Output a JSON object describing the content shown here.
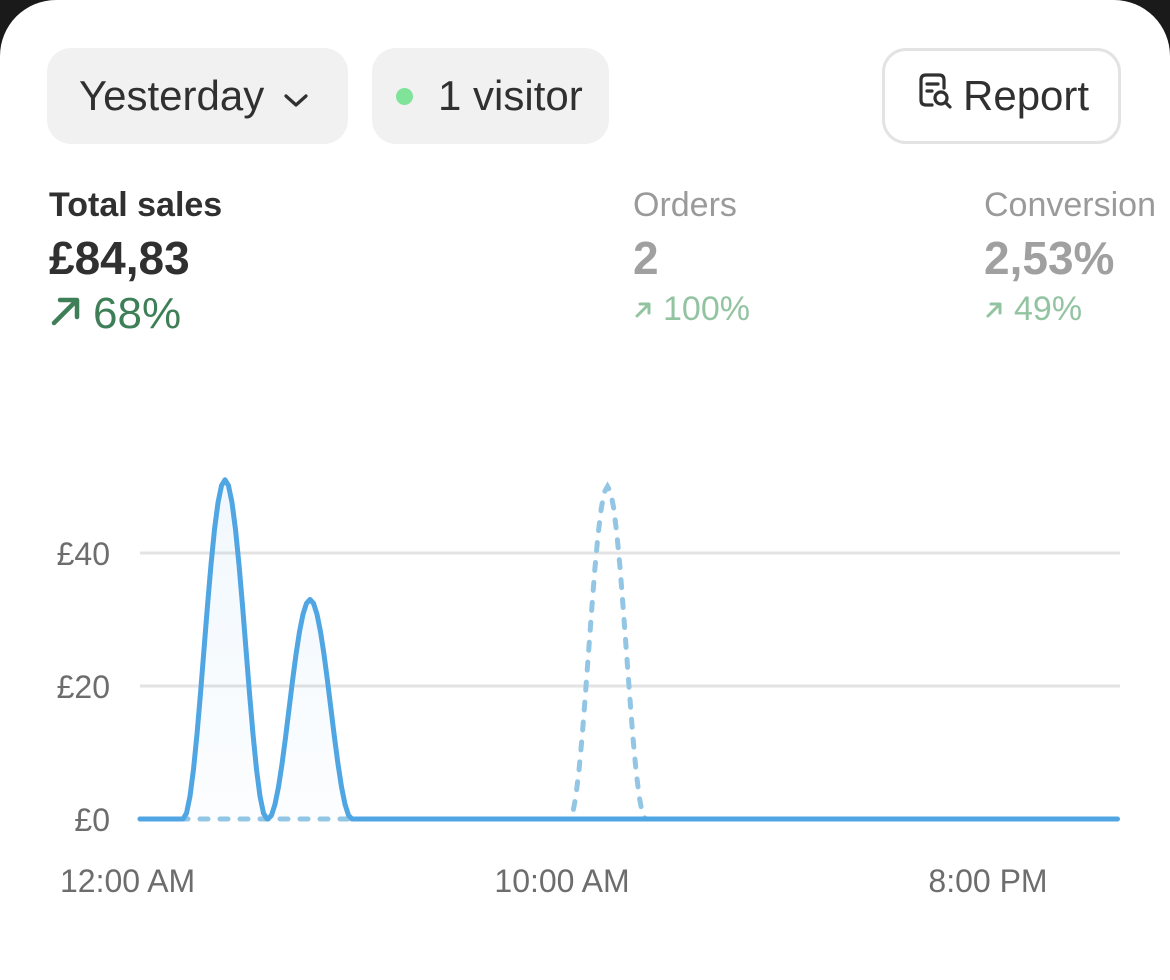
{
  "filters": {
    "date_range": "Yesterday",
    "visitors": "1 visitor",
    "report_label": "Report"
  },
  "metrics": [
    {
      "label": "Total sales",
      "value": "£84,83",
      "change": "68%"
    },
    {
      "label": "Orders",
      "value": "2",
      "change": "100%"
    },
    {
      "label": "Conversion",
      "value": "2,53%",
      "change": "49%"
    }
  ],
  "colors": {
    "current_series": "#4fa6e3",
    "comparison_series": "#92c6e4",
    "positive_change": "#3e7f58",
    "positive_change_muted": "#93c4a2",
    "live_dot": "#7fe39a"
  },
  "chart_data": {
    "type": "line",
    "xlabel": "",
    "ylabel": "",
    "ylim": [
      0,
      54
    ],
    "y_ticks": [
      0,
      20,
      40
    ],
    "y_tick_labels": [
      "£0",
      "£20",
      "£40"
    ],
    "xlim": [
      0,
      23
    ],
    "x_ticks": [
      0,
      10,
      20
    ],
    "x_tick_labels": [
      "12:00 AM",
      "10:00 AM",
      "8:00 PM"
    ],
    "grid": true,
    "series": [
      {
        "style": "solid",
        "x": [
          0,
          1,
          2,
          3,
          4,
          5,
          6,
          7,
          8,
          9,
          10,
          11,
          12,
          13,
          14,
          15,
          16,
          17,
          18,
          19,
          20,
          21,
          22,
          23
        ],
        "y": [
          0,
          0,
          51,
          0,
          33,
          0,
          0,
          0,
          0,
          0,
          0,
          0,
          0,
          0,
          0,
          0,
          0,
          0,
          0,
          0,
          0,
          0,
          0,
          0
        ]
      },
      {
        "style": "dotted",
        "x": [
          0,
          1,
          2,
          3,
          4,
          5,
          6,
          7,
          8,
          9,
          10,
          11,
          12,
          13,
          14,
          15,
          16,
          17,
          18,
          19,
          20,
          21,
          22,
          23
        ],
        "y": [
          0,
          0,
          0,
          0,
          0,
          0,
          0,
          0,
          0,
          0,
          0,
          50,
          0,
          0,
          0,
          0,
          0,
          0,
          0,
          0,
          0,
          0,
          0,
          0
        ]
      }
    ]
  }
}
